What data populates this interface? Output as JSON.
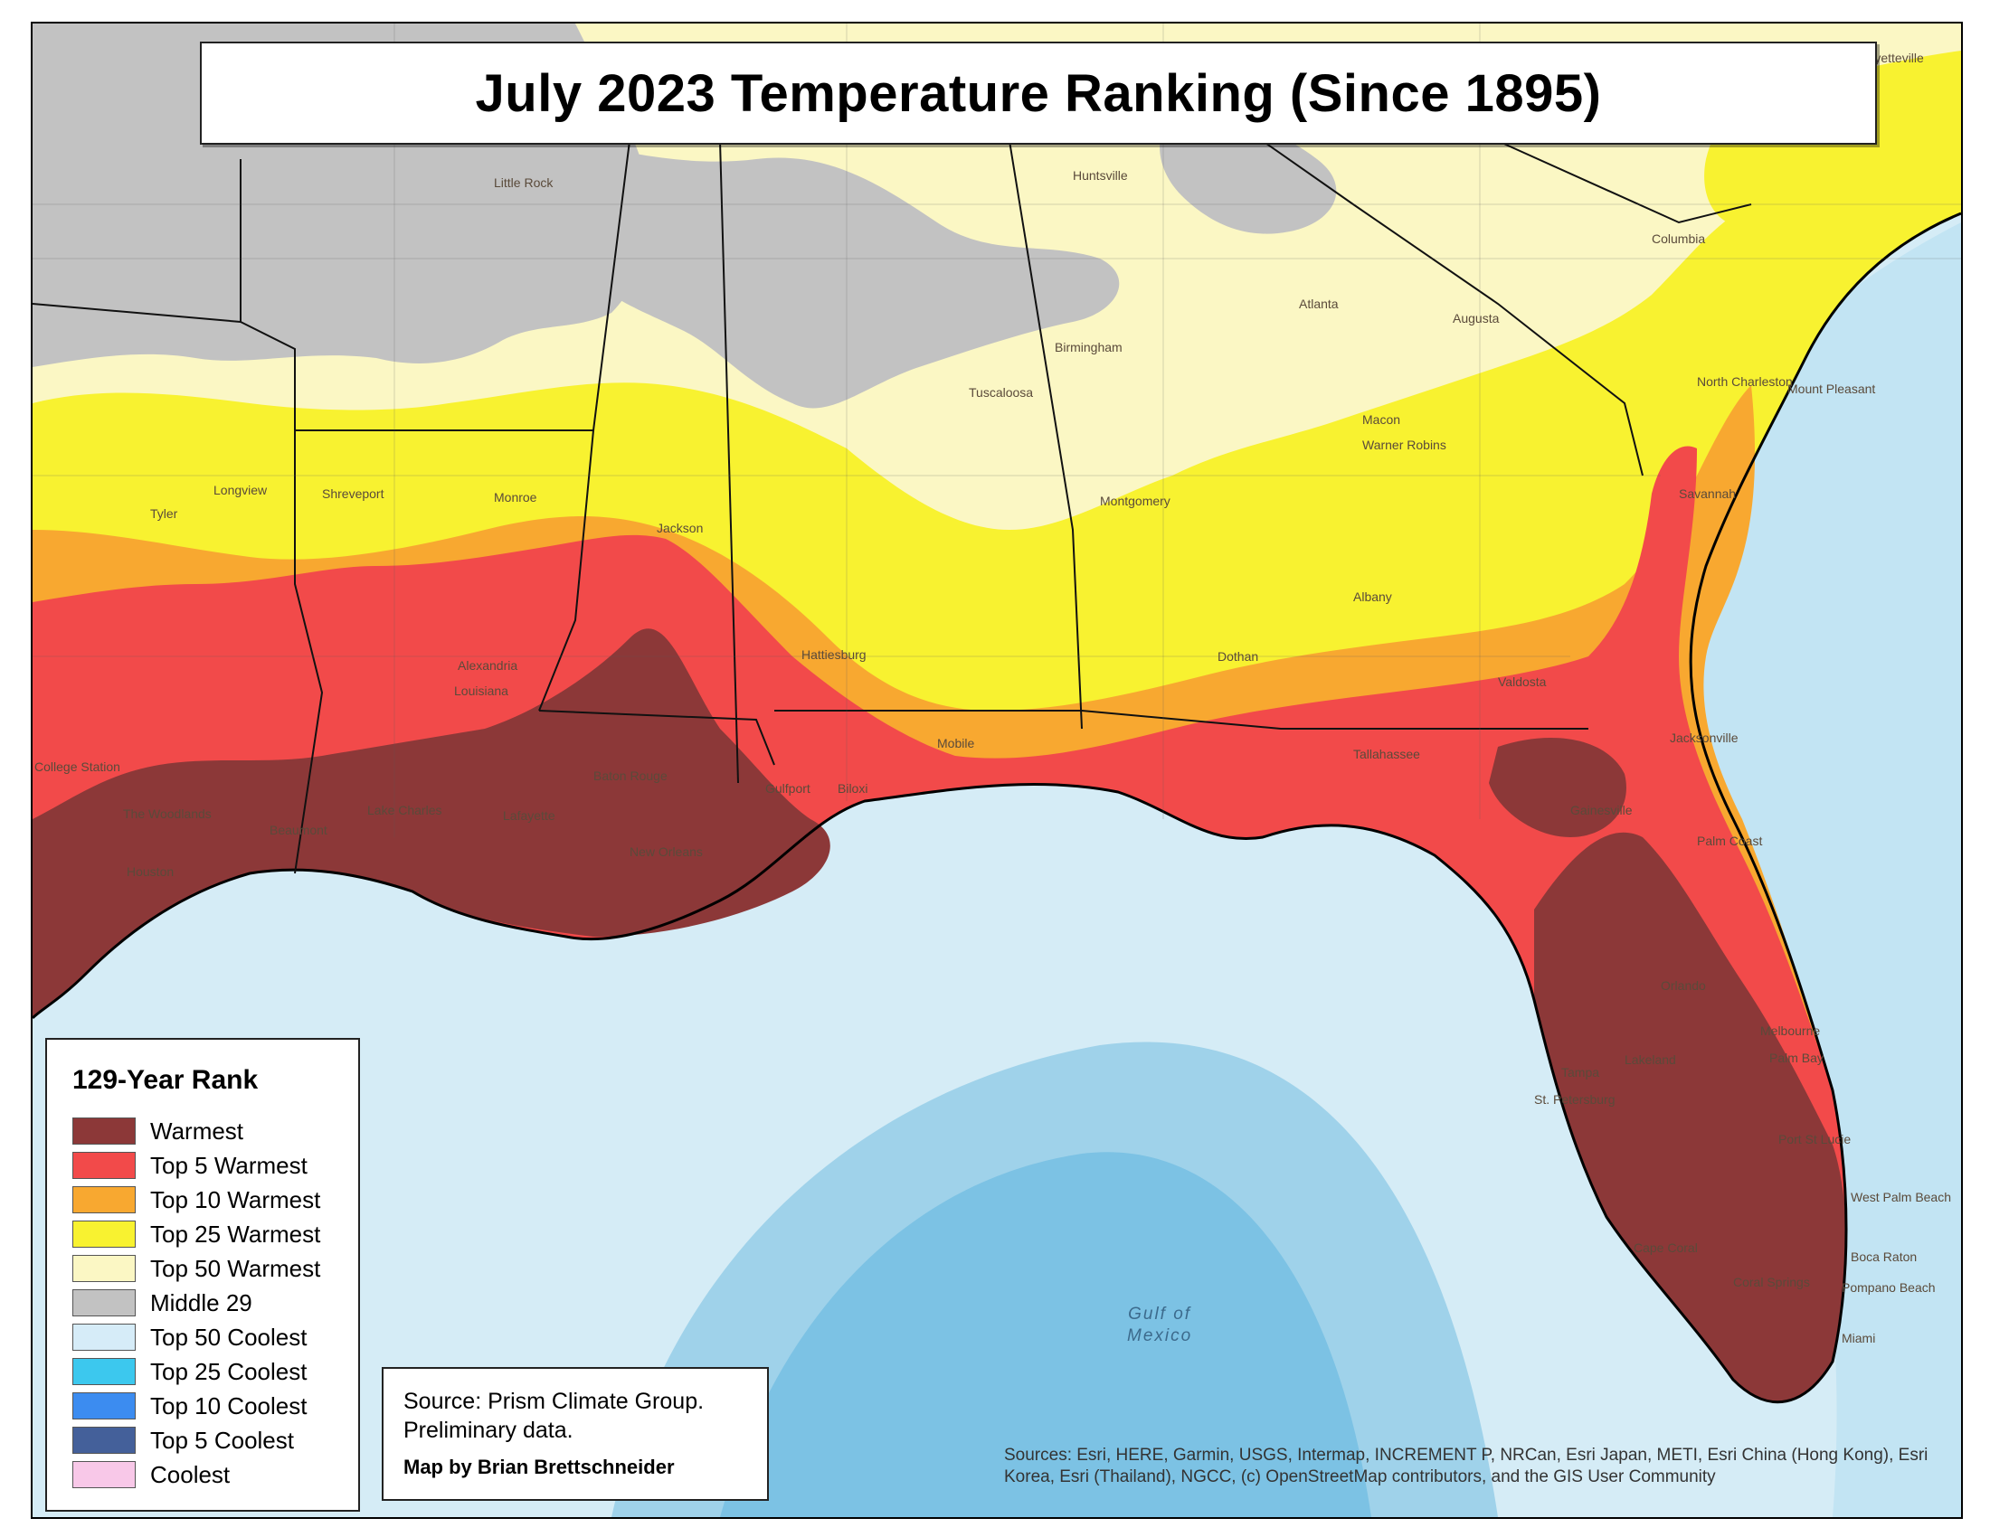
{
  "title": "July 2023 Temperature Ranking (Since 1895)",
  "legend": {
    "title": "129-Year Rank",
    "items": [
      {
        "label": "Warmest",
        "color": "#8c3838"
      },
      {
        "label": "Top 5 Warmest",
        "color": "#f24a4a"
      },
      {
        "label": "Top 10 Warmest",
        "color": "#f8a830"
      },
      {
        "label": "Top 25 Warmest",
        "color": "#f8f230"
      },
      {
        "label": "Top 50 Warmest",
        "color": "#fbf7c4"
      },
      {
        "label": "Middle 29",
        "color": "#c2c2c2"
      },
      {
        "label": "Top 50 Coolest",
        "color": "#d6ecf8"
      },
      {
        "label": "Top 25 Coolest",
        "color": "#3cc8ee"
      },
      {
        "label": "Top 10 Coolest",
        "color": "#3c8cf0"
      },
      {
        "label": "Top 5 Coolest",
        "color": "#44609a"
      },
      {
        "label": "Coolest",
        "color": "#f8c8e8"
      }
    ]
  },
  "source": {
    "line1": "Source: Prism Climate Group.",
    "line2": "Preliminary data.",
    "author": "Map by Brian Brettschneider"
  },
  "attribution": "Sources: Esri, HERE, Garmin, USGS, Intermap, INCREMENT P, NRCan, Esri Japan, METI, Esri China (Hong Kong), Esri Korea, Esri (Thailand), NGCC, (c) OpenStreetMap contributors, and the GIS User Community",
  "gulf_label": {
    "line1": "Gulf of",
    "line2": "Mexico"
  },
  "cities": [
    {
      "name": "Little Rock"
    },
    {
      "name": "Huntsville"
    },
    {
      "name": "Fayetteville"
    },
    {
      "name": "Columbia"
    },
    {
      "name": "Atlanta"
    },
    {
      "name": "Augusta"
    },
    {
      "name": "Birmingham"
    },
    {
      "name": "Tuscaloosa"
    },
    {
      "name": "North Charleston"
    },
    {
      "name": "Mount Pleasant"
    },
    {
      "name": "Macon"
    },
    {
      "name": "Warner Robins"
    },
    {
      "name": "Savannah"
    },
    {
      "name": "Shreveport"
    },
    {
      "name": "Monroe"
    },
    {
      "name": "Longview"
    },
    {
      "name": "Tyler"
    },
    {
      "name": "Jackson"
    },
    {
      "name": "Montgomery"
    },
    {
      "name": "Albany"
    },
    {
      "name": "Dothan"
    },
    {
      "name": "Valdosta"
    },
    {
      "name": "Hattiesburg"
    },
    {
      "name": "Alexandria"
    },
    {
      "name": "Louisiana"
    },
    {
      "name": "Baton Rouge"
    },
    {
      "name": "Lake Charles"
    },
    {
      "name": "Lafayette"
    },
    {
      "name": "Beaumont"
    },
    {
      "name": "New Orleans"
    },
    {
      "name": "Gulfport"
    },
    {
      "name": "Biloxi"
    },
    {
      "name": "Mobile"
    },
    {
      "name": "Tallahassee"
    },
    {
      "name": "Jacksonville"
    },
    {
      "name": "Gainesville"
    },
    {
      "name": "Palm Coast"
    },
    {
      "name": "Orlando"
    },
    {
      "name": "Melbourne"
    },
    {
      "name": "Palm Bay"
    },
    {
      "name": "Lakeland"
    },
    {
      "name": "Tampa"
    },
    {
      "name": "St. Petersburg"
    },
    {
      "name": "Port St Lucie"
    },
    {
      "name": "West Palm Beach"
    },
    {
      "name": "Cape Coral"
    },
    {
      "name": "Boca Raton"
    },
    {
      "name": "Coral Springs"
    },
    {
      "name": "Pompano Beach"
    },
    {
      "name": "Miami"
    },
    {
      "name": "College Station"
    },
    {
      "name": "The Woodlands"
    },
    {
      "name": "Houston"
    }
  ]
}
